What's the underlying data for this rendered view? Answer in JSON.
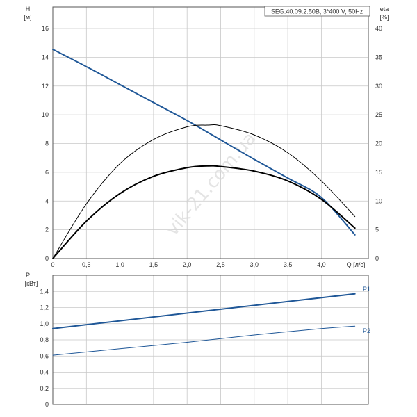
{
  "chart_data": [
    {
      "type": "line",
      "title": "SEG.40.09.2.50B, 3*400 V, 50Hz",
      "xlabel": "Q [л/с]",
      "ylabel_left_line1": "H",
      "ylabel_left_line2": "[м]",
      "ylabel_right_line1": "eta",
      "ylabel_right_line2": "[%]",
      "xlim": [
        0,
        4.7
      ],
      "ylim_left": [
        0,
        17.5
      ],
      "ylim_right": [
        0,
        43.75
      ],
      "x_ticks": [
        "0",
        "0,5",
        "1,0",
        "1,5",
        "2,0",
        "2,5",
        "3,0",
        "3,5",
        "4,0"
      ],
      "y_left_ticks": [
        "0",
        "2",
        "4",
        "6",
        "8",
        "10",
        "12",
        "14",
        "16"
      ],
      "y_right_ticks": [
        "0",
        "5",
        "10",
        "15",
        "20",
        "25",
        "30",
        "35",
        "40"
      ],
      "grid": true,
      "series": [
        {
          "axis": "left",
          "color": "#1f5797",
          "width": 2,
          "x": [
            0,
            0.5,
            1.0,
            1.5,
            2.0,
            2.5,
            3.0,
            3.5,
            4.0,
            4.5
          ],
          "y": [
            14.55,
            13.35,
            12.1,
            10.85,
            9.6,
            8.25,
            6.9,
            5.6,
            4.25,
            1.65
          ]
        },
        {
          "axis": "right",
          "color": "#000000",
          "width": 1,
          "x": [
            0,
            0.5,
            1.0,
            1.5,
            2.0,
            2.3,
            2.5,
            3.0,
            3.5,
            4.0,
            4.5
          ],
          "y": [
            0,
            9.5,
            16.5,
            20.7,
            22.9,
            23.2,
            23.1,
            21.5,
            18.4,
            13.5,
            7.3
          ]
        },
        {
          "axis": "right",
          "color": "#000000",
          "width": 2,
          "x": [
            0,
            0.5,
            1.0,
            1.5,
            2.0,
            2.3,
            2.5,
            3.0,
            3.5,
            4.0,
            4.5
          ],
          "y": [
            0,
            6.5,
            11.3,
            14.3,
            15.8,
            16.1,
            16.0,
            15.2,
            13.5,
            10.3,
            5.3
          ]
        }
      ]
    },
    {
      "type": "line",
      "xlim": [
        0,
        4.7
      ],
      "ylim": [
        0,
        1.6
      ],
      "ylabel_line1": "P",
      "ylabel_line2": "[кВт]",
      "y_ticks": [
        "0",
        "0,2",
        "0,4",
        "0,6",
        "0,8",
        "1,0",
        "1,2",
        "1,4"
      ],
      "grid": true,
      "series": [
        {
          "name": "P1",
          "color": "#1f5797",
          "width": 2,
          "x": [
            0,
            4.5
          ],
          "y": [
            0.94,
            1.37
          ]
        },
        {
          "name": "P2",
          "color": "#1f5797",
          "width": 1,
          "x": [
            0,
            1.0,
            2.0,
            3.0,
            4.0,
            4.5
          ],
          "y": [
            0.61,
            0.69,
            0.77,
            0.86,
            0.94,
            0.97
          ]
        }
      ]
    }
  ],
  "watermark": "vik-21.com.ua"
}
